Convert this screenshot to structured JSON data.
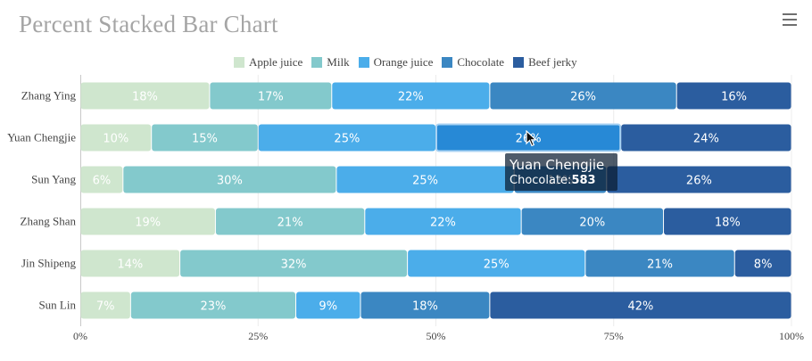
{
  "title": "Percent Stacked Bar Chart",
  "menu_icon": "hamburger-menu-icon",
  "chart_data": {
    "type": "bar",
    "orientation": "horizontal",
    "stacking": "percent",
    "title": "Percent Stacked Bar Chart",
    "categories": [
      "Zhang Ying",
      "Yuan Chengjie",
      "Sun Yang",
      "Zhang Shan",
      "Jin Shipeng",
      "Sun Lin"
    ],
    "series": [
      {
        "name": "Apple juice",
        "color": "#cfe6ce",
        "values": [
          18,
          10,
          6,
          19,
          14,
          7
        ]
      },
      {
        "name": "Milk",
        "color": "#83c9cc",
        "values": [
          17,
          15,
          30,
          21,
          32,
          23
        ]
      },
      {
        "name": "Orange juice",
        "color": "#4badea",
        "values": [
          22,
          25,
          25,
          22,
          25,
          9
        ]
      },
      {
        "name": "Chocolate",
        "color": "#3b87c2",
        "values": [
          26,
          26,
          13,
          20,
          21,
          18
        ]
      },
      {
        "name": "Beef jerky",
        "color": "#2b5d9f",
        "values": [
          16,
          24,
          26,
          18,
          8,
          42
        ]
      }
    ],
    "x_ticks": [
      "0%",
      "25%",
      "50%",
      "75%",
      "100%"
    ],
    "xlim": [
      0,
      100
    ],
    "legend_position": "top",
    "grid": true
  },
  "highlight": {
    "category": 1,
    "series": 3,
    "color": "#2789d6"
  },
  "tooltip": {
    "title": "Yuan Chengjie",
    "label": "Chocolate:",
    "value": "583"
  }
}
